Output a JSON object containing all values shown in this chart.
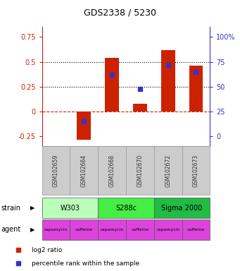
{
  "title": "GDS2338 / 5230",
  "samples": [
    "GSM102659",
    "GSM102664",
    "GSM102668",
    "GSM102670",
    "GSM102672",
    "GSM102673"
  ],
  "log2_ratio": [
    0.0,
    -0.28,
    0.54,
    0.08,
    0.62,
    0.46
  ],
  "percentile_rank": [
    null,
    15,
    62,
    48,
    72,
    65
  ],
  "ylim_left": [
    -0.35,
    0.85
  ],
  "ylim_right": [
    -10,
    110
  ],
  "yticks_left": [
    -0.25,
    0.0,
    0.25,
    0.5,
    0.75
  ],
  "ytick_labels_left": [
    "-0.25",
    "0",
    "0.25",
    "0.5",
    "0.75"
  ],
  "yticks_right": [
    0,
    25,
    50,
    75,
    100
  ],
  "ytick_labels_right": [
    "0",
    "25",
    "50",
    "75",
    "100%"
  ],
  "hlines": [
    0.25,
    0.5
  ],
  "bar_color": "#cc2200",
  "dot_color": "#3333cc",
  "zero_line_color": "#cc2200",
  "strain_groups": [
    {
      "label": "W303",
      "span": [
        0,
        2
      ],
      "color": "#bbffbb"
    },
    {
      "label": "S288c",
      "span": [
        2,
        4
      ],
      "color": "#44ee44"
    },
    {
      "label": "Sigma 2000",
      "span": [
        4,
        6
      ],
      "color": "#22bb44"
    }
  ],
  "agent_labels": [
    "rapamycin",
    "caffeine",
    "rapamycin",
    "caffeine",
    "rapamycin",
    "caffeine"
  ],
  "agent_color": "#dd44dd",
  "legend_items": [
    {
      "label": "log2 ratio",
      "color": "#cc2200"
    },
    {
      "label": "percentile rank within the sample",
      "color": "#3333cc"
    }
  ],
  "bar_width": 0.5,
  "sample_bg": "#cccccc"
}
